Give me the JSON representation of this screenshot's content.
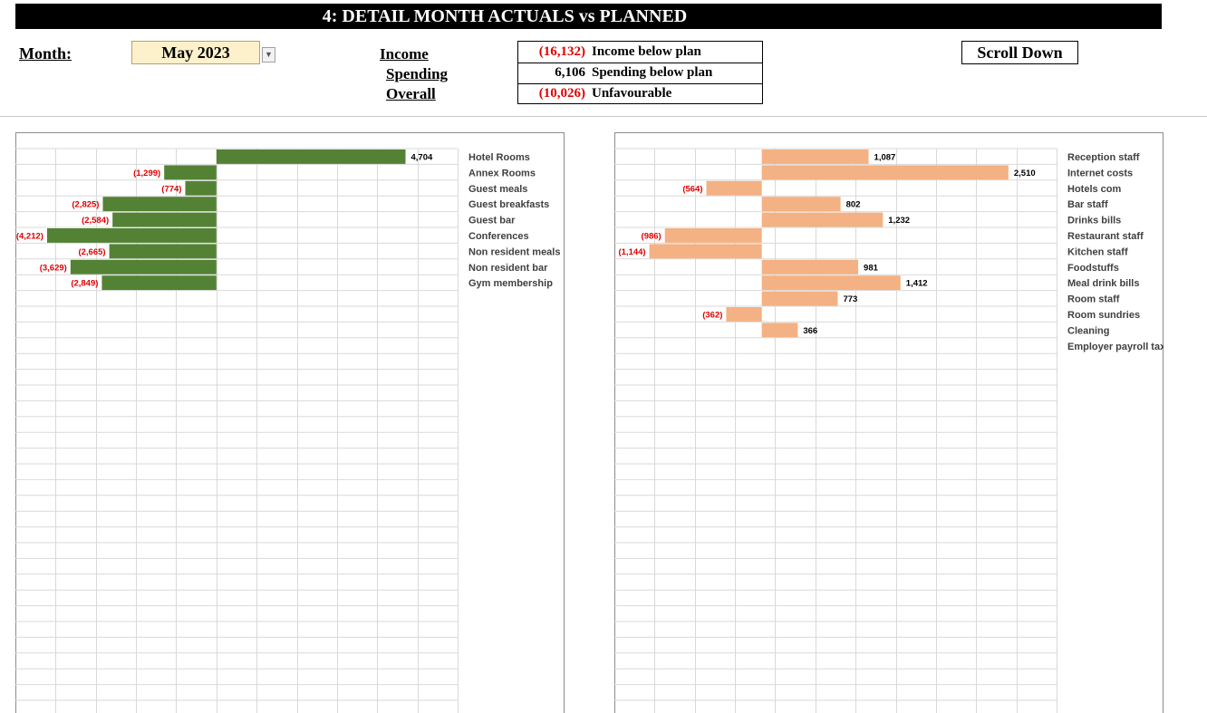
{
  "header": {
    "title": "4:  DETAIL MONTH ACTUALS vs PLANNED",
    "month_label": "Month:",
    "month_value": "May 2023",
    "scroll_label": "Scroll Down"
  },
  "summary": {
    "labels": [
      "Income",
      "Spending",
      "Overall"
    ],
    "rows": [
      {
        "value": "(16,132)",
        "negative": true,
        "text": "Income below plan"
      },
      {
        "value": "6,106",
        "negative": false,
        "text": "Spending below plan"
      },
      {
        "value": "(10,026)",
        "negative": true,
        "text": "Unfavourable"
      }
    ]
  },
  "chart_data": [
    {
      "type": "bar",
      "orientation": "horizontal",
      "categories": [
        "Hotel Rooms",
        "Annex Rooms",
        "Guest meals",
        "Guest breakfasts",
        "Guest bar",
        "Conferences",
        "Non resident meals",
        "Non resident bar",
        "Gym membership"
      ],
      "values": [
        4704,
        -1299,
        -774,
        -2825,
        -2584,
        -4212,
        -2665,
        -3629,
        -2849
      ],
      "labels": [
        "4,704",
        "(1,299)",
        "(774)",
        "(2,825)",
        "(2,584)",
        "(4,212)",
        "(2,665)",
        "(3,629)",
        "(2,849)"
      ],
      "xlim": [
        -5000,
        6000
      ],
      "color": "#548235",
      "negative_label_color": "#e00000",
      "grid": true
    },
    {
      "type": "bar",
      "orientation": "horizontal",
      "categories": [
        "Reception staff",
        "Internet costs",
        "Hotels com",
        "Bar staff",
        "Drinks bills",
        "Restaurant staff",
        "Kitchen staff",
        "Foodstuffs",
        "Meal drink bills",
        "Room staff",
        "Room sundries",
        "Cleaning",
        "Employer payroll taxes"
      ],
      "values": [
        1087,
        2510,
        -564,
        802,
        1232,
        -986,
        -1144,
        981,
        1412,
        773,
        -362,
        366,
        null
      ],
      "labels": [
        "1,087",
        "2,510",
        "(564)",
        "802",
        "1,232",
        "(986)",
        "(1,144)",
        "981",
        "1,412",
        "773",
        "(362)",
        "366",
        ""
      ],
      "xlim": [
        -1500,
        3000
      ],
      "color": "#f4b183",
      "negative_label_color": "#e00000",
      "grid": true
    }
  ]
}
